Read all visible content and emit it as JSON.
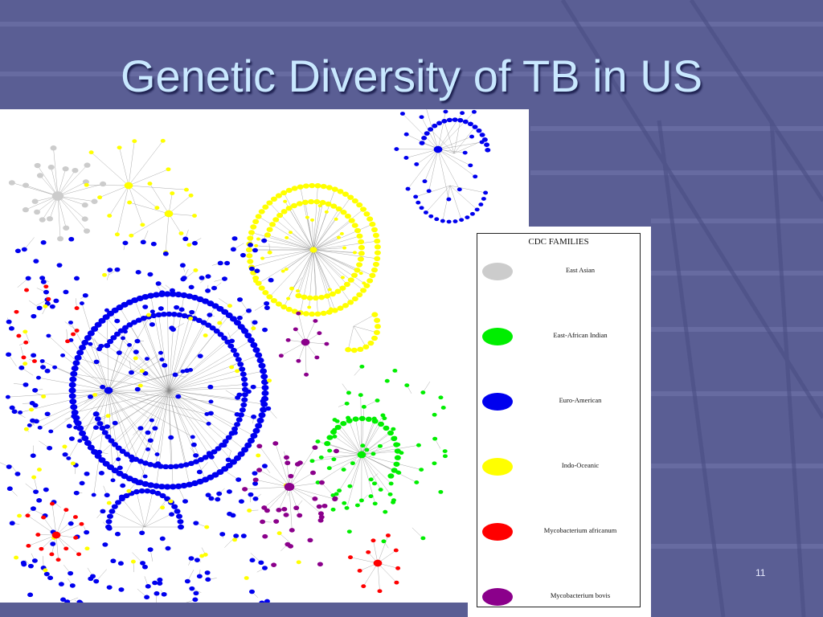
{
  "slide": {
    "title": "Genetic Diversity of TB in US",
    "page_number": "11"
  },
  "legend": {
    "title": "CDC FAMILIES",
    "items": [
      {
        "label": "East Asian",
        "color": "#cccccc"
      },
      {
        "label": "East-African Indian",
        "color": "#00ee00"
      },
      {
        "label": "Euro-American",
        "color": "#0000ee"
      },
      {
        "label": "Indo-Oceanic",
        "color": "#ffff00"
      },
      {
        "label": "Mycobacterium africanum",
        "color": "#ff0000"
      },
      {
        "label": "Mycobacterium bovis",
        "color": "#8b008b"
      }
    ]
  },
  "colors": {
    "background": "#5a5e94",
    "title_text": "#c9e8ff"
  }
}
